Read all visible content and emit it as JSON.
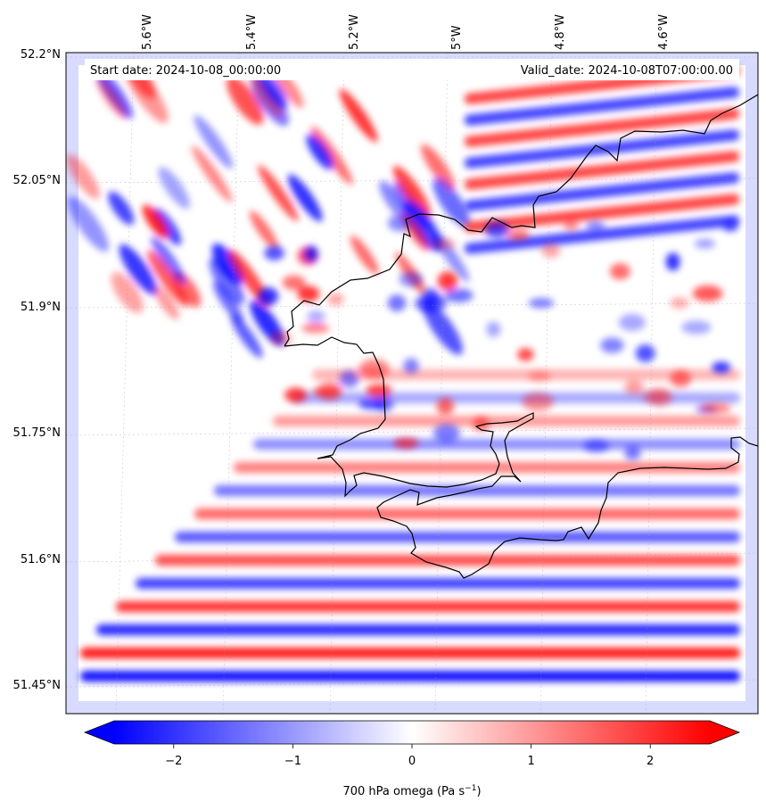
{
  "header": {
    "start_date": "Start date: 2024-10-08_00:00:00",
    "valid_date": "Valid_date: 2024-10-08T07:00:00.00"
  },
  "map": {
    "lon_labels": [
      "5.6°W",
      "5.4°W",
      "5.2°W",
      "5°W",
      "4.8°W",
      "4.6°W"
    ],
    "lat_labels": [
      "52.2°N",
      "52.05°N",
      "51.9°N",
      "51.75°N",
      "51.6°N",
      "51.45°N"
    ],
    "colors": {
      "negative": "#0000ff",
      "neutral": "#ffffff",
      "positive": "#ff0000",
      "coastline": "#000000"
    }
  },
  "colorbar": {
    "min": -2.5,
    "max": 2.5,
    "ticks": [
      "−2",
      "−1",
      "0",
      "1",
      "2"
    ],
    "label": "700 hPa omega (Pa s",
    "label_exp": "−1",
    "label_close": ")"
  }
}
